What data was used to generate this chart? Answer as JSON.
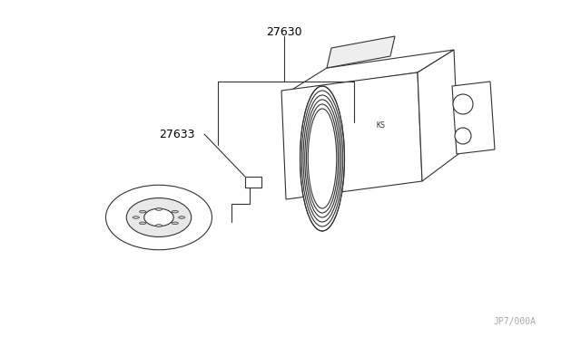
{
  "title": "",
  "background_color": "#ffffff",
  "line_color": "#333333",
  "label_27630": "27630",
  "label_27633": "27633",
  "watermark": "JP7/000A",
  "label_color": "#555555",
  "watermark_color": "#aaaaaa"
}
